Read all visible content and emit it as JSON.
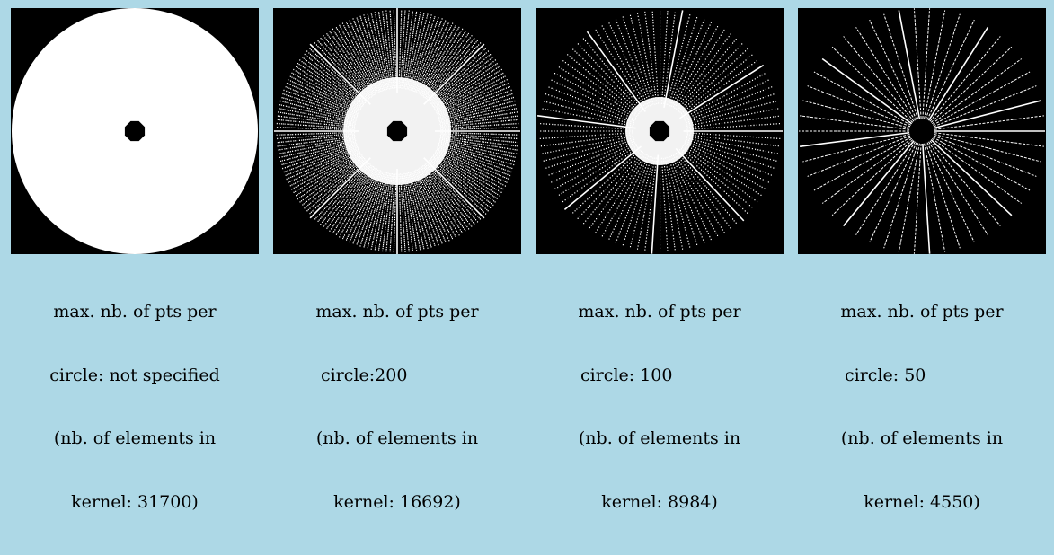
{
  "figure": {
    "background_color": "#add8e6",
    "panel_background_color": "#000000",
    "mark_color": "#ffffff",
    "panels": [
      {
        "kind": "filled-disk",
        "rays": 0,
        "caption": {
          "line1": "max. nb. of pts per",
          "line2": "circle: not specified",
          "line3": "(nb. of elements in",
          "line4": "kernel: 31700)"
        }
      },
      {
        "kind": "dense-rays",
        "rays": 200,
        "caption": {
          "line1": "max. nb. of pts per",
          "line2": "circle:200",
          "line3": "(nb. of elements in",
          "line4": "kernel: 16692)"
        }
      },
      {
        "kind": "medium-rays",
        "rays": 100,
        "caption": {
          "line1": "max. nb. of pts per",
          "line2": "circle: 100",
          "line3": "(nb. of elements in",
          "line4": "kernel: 8984)"
        }
      },
      {
        "kind": "sparse-rays",
        "rays": 50,
        "caption": {
          "line1": "max. nb. of pts per",
          "line2": "circle: 50",
          "line3": "(nb. of elements in",
          "line4": "kernel: 4550)"
        }
      }
    ]
  }
}
